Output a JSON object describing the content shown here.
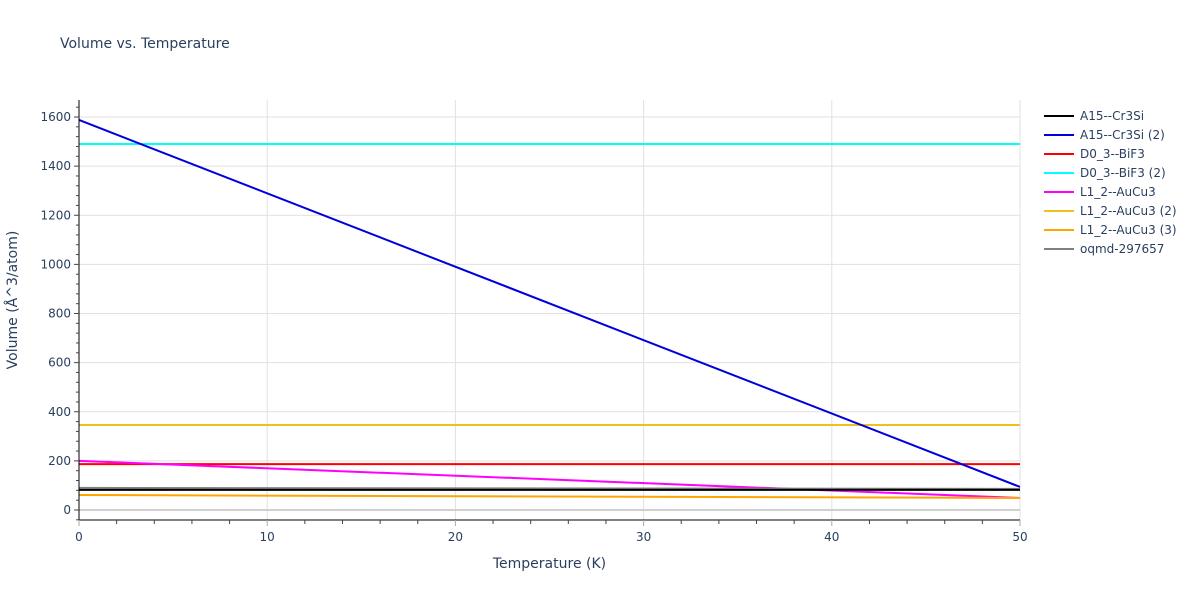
{
  "chart_data": {
    "type": "line",
    "title": "Volume vs. Temperature",
    "xlabel": "Temperature (K)",
    "ylabel": "Volume (Å^3/atom)",
    "xlim": [
      0,
      50
    ],
    "ylim": [
      -40,
      1670
    ],
    "xticks": [
      0,
      10,
      20,
      30,
      40,
      50
    ],
    "yticks": [
      0,
      200,
      400,
      600,
      800,
      1000,
      1200,
      1400,
      1600
    ],
    "grid": true,
    "legend_position": "right",
    "series": [
      {
        "name": "A15--Cr3Si",
        "color": "#000000",
        "x": [
          0,
          50
        ],
        "y": [
          82,
          82
        ]
      },
      {
        "name": "A15--Cr3Si (2)",
        "color": "#0000dd",
        "x": [
          0,
          50
        ],
        "y": [
          1588,
          94
        ]
      },
      {
        "name": "D0_3--BiF3",
        "color": "#ff0000",
        "x": [
          0,
          50
        ],
        "y": [
          187,
          187
        ]
      },
      {
        "name": "D0_3--BiF3 (2)",
        "color": "#00ffff",
        "x": [
          0,
          50
        ],
        "y": [
          1490,
          1490
        ]
      },
      {
        "name": "L1_2--AuCu3",
        "color": "#ff00ff",
        "x": [
          0,
          50
        ],
        "y": [
          200,
          49
        ]
      },
      {
        "name": "L1_2--AuCu3 (2)",
        "color": "#f0c020",
        "x": [
          0,
          50
        ],
        "y": [
          346,
          346
        ]
      },
      {
        "name": "L1_2--AuCu3 (3)",
        "color": "#ffa500",
        "x": [
          0,
          50
        ],
        "y": [
          61,
          49
        ]
      },
      {
        "name": "oqmd-297657",
        "color": "#808080",
        "x": [
          0,
          50
        ],
        "y": [
          90,
          86
        ]
      }
    ]
  }
}
